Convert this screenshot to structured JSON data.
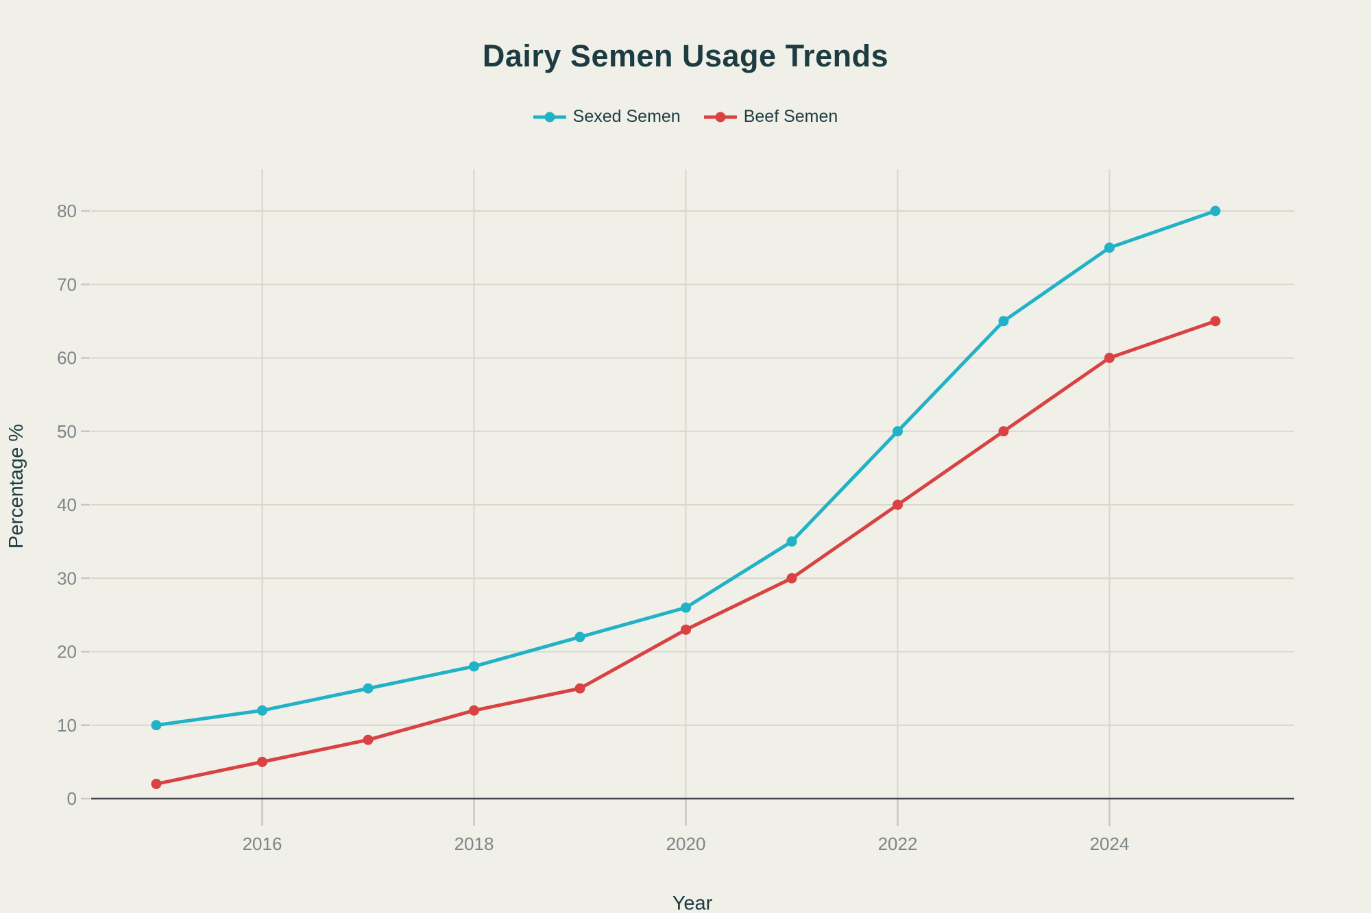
{
  "chart_data": {
    "type": "line",
    "title": "Dairy Semen Usage Trends",
    "xlabel": "Year",
    "ylabel": "Percentage %",
    "x": [
      2015,
      2016,
      2017,
      2018,
      2019,
      2020,
      2021,
      2022,
      2023,
      2024,
      2025
    ],
    "series": [
      {
        "name": "Sexed Semen",
        "color": "#21b2c6",
        "values": [
          10,
          12,
          15,
          18,
          22,
          26,
          35,
          50,
          65,
          75,
          80
        ]
      },
      {
        "name": "Beef Semen",
        "color": "#d94242",
        "values": [
          2,
          5,
          8,
          12,
          15,
          23,
          30,
          40,
          50,
          60,
          65
        ]
      }
    ],
    "xlim": [
      2015,
      2025
    ],
    "ylim": [
      0,
      80
    ],
    "yticks": [
      0,
      10,
      20,
      30,
      40,
      50,
      60,
      70,
      80
    ],
    "xticks": [
      2016,
      2018,
      2020,
      2022,
      2024
    ],
    "grid": true,
    "legend_position": "top",
    "marker": "circle"
  },
  "colors": {
    "background": "#f0efe8",
    "text_primary": "#1d3c42",
    "tick_label": "#7c8588",
    "gridline": "#d8d7ce",
    "tick_mark": "#c9c8c0",
    "axis_line": "#40464a"
  }
}
